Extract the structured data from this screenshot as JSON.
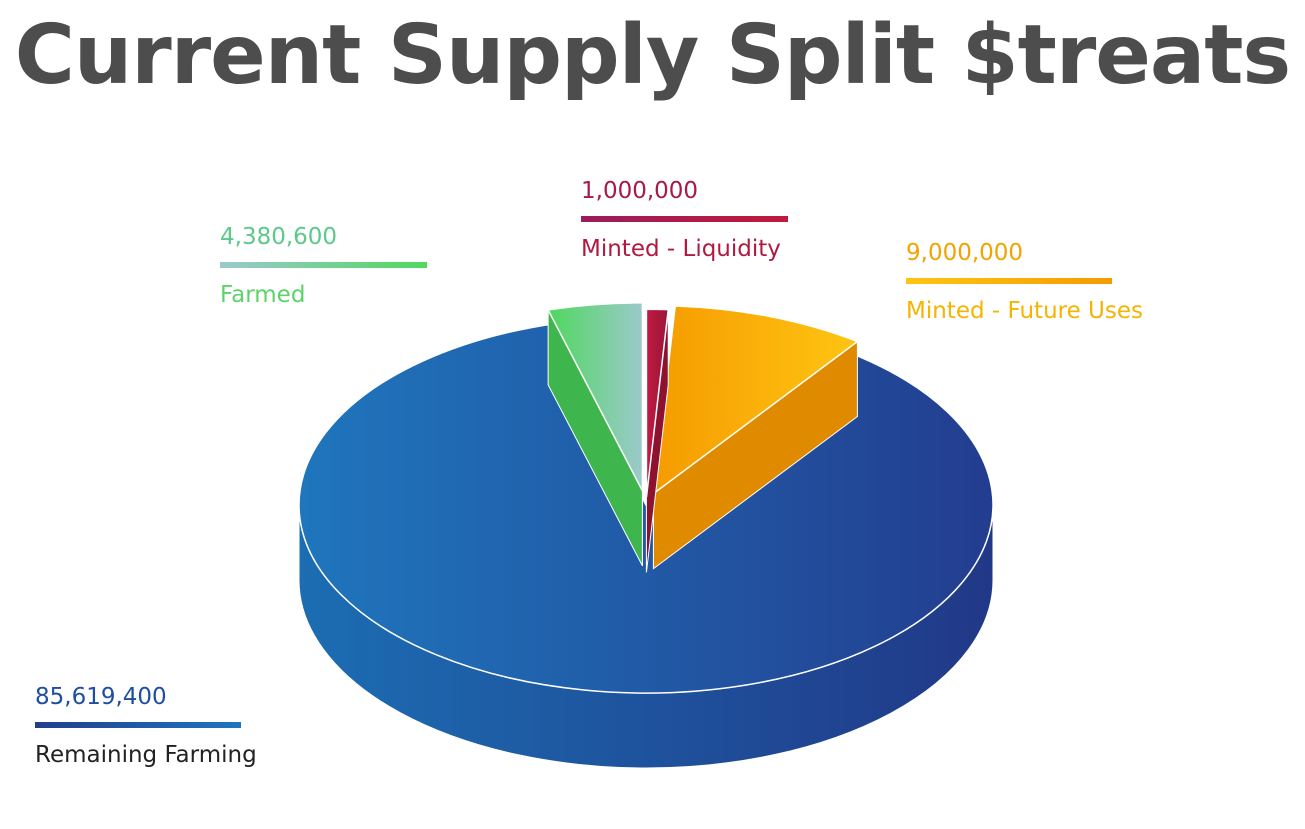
{
  "title": "Current Supply Split $treats",
  "chart_data": {
    "type": "pie",
    "title": "Current Supply Split $treats",
    "slices": [
      {
        "label": "Minted - Liquidity",
        "value": 1000000,
        "value_text": "1,000,000",
        "color": "#b0183d"
      },
      {
        "label": "Minted - Future Uses",
        "value": 9000000,
        "value_text": "9,000,000",
        "color": "#f7a400"
      },
      {
        "label": "Remaining Farming",
        "value": 85619400,
        "value_text": "85,619,400",
        "color": "#1f4ea0"
      },
      {
        "label": "Farmed",
        "value": 4380600,
        "value_text": "4,380,600",
        "color": "#5bd36a"
      }
    ]
  },
  "labels": {
    "farmed": {
      "value": "4,380,600",
      "name": "Farmed"
    },
    "liquidity": {
      "value": "1,000,000",
      "name": "Minted - Liquidity"
    },
    "future": {
      "value": "9,000,000",
      "name": "Minted - Future Uses"
    },
    "remaining": {
      "value": "85,619,400",
      "name": "Remaining Farming"
    }
  }
}
